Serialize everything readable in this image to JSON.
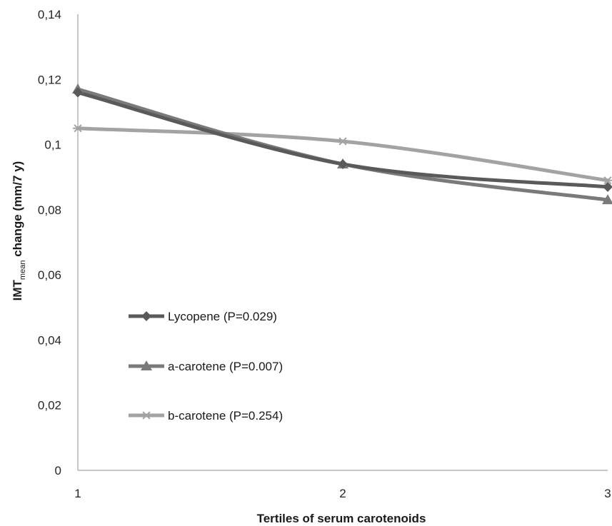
{
  "chart_data": {
    "type": "line",
    "title": "",
    "xlabel": "Tertiles of serum carotenoids",
    "ylabel": {
      "main": "IMT",
      "subscript": "mean",
      "rest": " change (mm/7 y)"
    },
    "categories": [
      "1",
      "2",
      "3"
    ],
    "ylim": [
      0,
      0.14
    ],
    "yticks": [
      "0",
      "0,02",
      "0,04",
      "0,06",
      "0,08",
      "0,1",
      "0,12",
      "0,14"
    ],
    "ytick_values": [
      0,
      0.02,
      0.04,
      0.06,
      0.08,
      0.1,
      0.12,
      0.14
    ],
    "grid": false,
    "legend_position": "left-center",
    "series": [
      {
        "name": "Lycopene (P=0.029)",
        "values": [
          0.116,
          0.094,
          0.087
        ],
        "color": "#5a5a5a",
        "marker": "diamond"
      },
      {
        "name": "a-carotene (P=0.007)",
        "values": [
          0.117,
          0.094,
          0.083
        ],
        "color": "#7a7a7a",
        "marker": "triangle"
      },
      {
        "name": "b-carotene (P=0.254)",
        "values": [
          0.105,
          0.101,
          0.089
        ],
        "color": "#a3a3a3",
        "marker": "asterisk"
      }
    ]
  }
}
